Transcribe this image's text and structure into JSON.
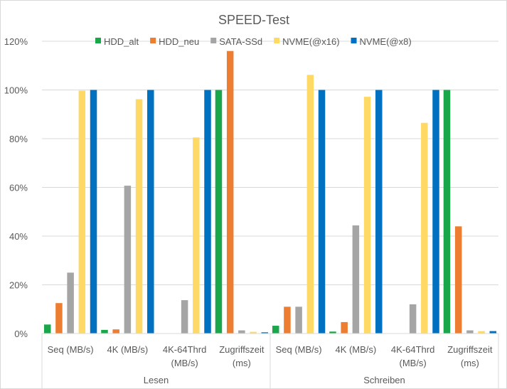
{
  "chart_data": {
    "type": "bar",
    "title": "SPEED-Test",
    "xlabel": "",
    "ylabel": "",
    "ylim": [
      0,
      1.2
    ],
    "yticks": [
      0,
      0.2,
      0.4,
      0.6,
      0.8,
      1.0,
      1.2
    ],
    "ytick_labels": [
      "0%",
      "20%",
      "40%",
      "60%",
      "80%",
      "100%",
      "120%"
    ],
    "grid": true,
    "legend_position": "top",
    "groups": [
      {
        "label": "Lesen",
        "categories": [
          "Seq (MB/s)",
          "4K (MB/s)",
          "4K-64Thrd (MB/s)",
          "Zugriffszeit (ms)"
        ]
      },
      {
        "label": "Schreiben",
        "categories": [
          "Seq (MB/s)",
          "4K (MB/s)",
          "4K-64Thrd (MB/s)",
          "Zugriffszeit (ms)"
        ]
      }
    ],
    "categories": [
      [
        "Seq (MB/s)"
      ],
      [
        "4K (MB/s)"
      ],
      [
        "4K-64Thrd",
        "(MB/s)"
      ],
      [
        "Zugriffszeit",
        "(ms)"
      ],
      [
        "Seq (MB/s)"
      ],
      [
        "4K (MB/s)"
      ],
      [
        "4K-64Thrd",
        "(MB/s)"
      ],
      [
        "Zugriffszeit",
        "(ms)"
      ]
    ],
    "series": [
      {
        "name": "HDD_alt",
        "color": "#1aa64a",
        "values": [
          0.037,
          0.015,
          0.0,
          1.0,
          0.032,
          0.008,
          0.0,
          1.0
        ]
      },
      {
        "name": "HDD_neu",
        "color": "#ed7d31",
        "values": [
          0.125,
          0.017,
          0.0,
          1.16,
          0.11,
          0.047,
          0.0,
          0.44
        ]
      },
      {
        "name": "SATA-SSd",
        "color": "#a5a5a5",
        "values": [
          0.25,
          0.607,
          0.137,
          0.013,
          0.11,
          0.444,
          0.12,
          0.013
        ]
      },
      {
        "name": "NVME(@x16)",
        "color": "#ffd966",
        "values": [
          0.997,
          0.962,
          0.805,
          0.007,
          1.062,
          0.972,
          0.865,
          0.01
        ]
      },
      {
        "name": "NVME(@x8)",
        "color": "#0070c0",
        "values": [
          1.0,
          1.0,
          1.0,
          0.005,
          1.0,
          1.0,
          1.0,
          0.01
        ]
      }
    ]
  }
}
